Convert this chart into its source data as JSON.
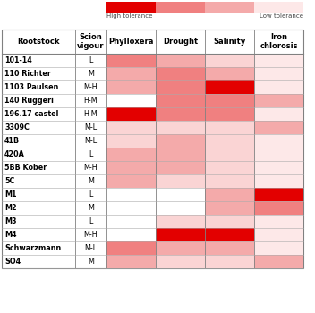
{
  "rootstocks": [
    "101-14",
    "110 Richter",
    "1103 Paulsen",
    "140 Ruggeri",
    "196.17 castel",
    "3309C",
    "41B",
    "420A",
    "5BB Kober",
    "5C",
    "M1",
    "M2",
    "M3",
    "M4",
    "Schwarzmann",
    "SO4"
  ],
  "vigour": [
    "L",
    "M",
    "M-H",
    "H-M",
    "H-M",
    "M-L",
    "M-L",
    "L",
    "M-H",
    "M",
    "L",
    "M",
    "L",
    "M-H",
    "M-L",
    "M"
  ],
  "col_headers": [
    "Rootstock",
    "Scion\nvigour",
    "Phylloxera",
    "Drought",
    "Salinity",
    "Iron\nchlorosis"
  ],
  "cell_colors": [
    [
      "#f08080",
      "#f4aaaa",
      "#fad4d4",
      "#fde8e8"
    ],
    [
      "#f4aaaa",
      "#f08080",
      "#f4aaaa",
      "#fde8e8"
    ],
    [
      "#f4aaaa",
      "#f08080",
      "#e30000",
      "#fde8e8"
    ],
    [
      "#ffffff",
      "#f08080",
      "#f08080",
      "#f4aaaa"
    ],
    [
      "#e30000",
      "#f08080",
      "#f08080",
      "#fde8e8"
    ],
    [
      "#fad4d4",
      "#fad4d4",
      "#fad4d4",
      "#f4aaaa"
    ],
    [
      "#fad4d4",
      "#f4aaaa",
      "#fad4d4",
      "#fde8e8"
    ],
    [
      "#f4aaaa",
      "#f4aaaa",
      "#fad4d4",
      "#fde8e8"
    ],
    [
      "#f4aaaa",
      "#f4aaaa",
      "#fad4d4",
      "#fde8e8"
    ],
    [
      "#f4aaaa",
      "#fad4d4",
      "#fad4d4",
      "#fde8e8"
    ],
    [
      "#ffffff",
      "#ffffff",
      "#f4aaaa",
      "#e30000"
    ],
    [
      "#ffffff",
      "#ffffff",
      "#f4aaaa",
      "#f08080"
    ],
    [
      "#ffffff",
      "#fad4d4",
      "#fad4d4",
      "#fde8e8"
    ],
    [
      "#ffffff",
      "#e30000",
      "#e30000",
      "#fde8e8"
    ],
    [
      "#f08080",
      "#f4aaaa",
      "#f4aaaa",
      "#fde8e8"
    ],
    [
      "#f4aaaa",
      "#fad4d4",
      "#fad4d4",
      "#f4aaaa"
    ]
  ],
  "legend_colors": [
    "#e30000",
    "#f08080",
    "#f4aaaa",
    "#fde8e8"
  ],
  "legend_left_label": "High tolerance",
  "legend_right_label": "Low tolerance"
}
